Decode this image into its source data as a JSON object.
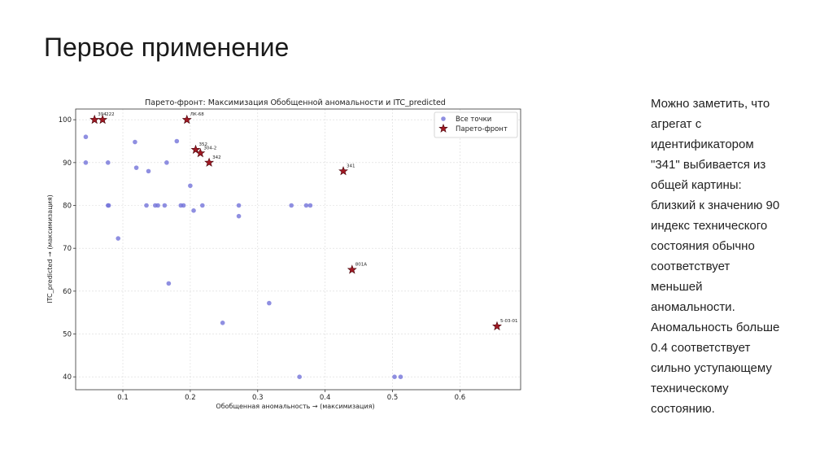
{
  "slide": {
    "title": "Первое применение",
    "note": "Можно заметить, что\nагрегат с\nидентификатором\n\"341\" выбивается из\nобщей картины:\nблизкий к значению 90\nиндекс технического\nсостояния обычно\nсоответствует\nменьшей\nаномальности.\nАномальность больше\n0.4 соответствует\nсильно уступающему\nтехническому\nсостоянию."
  },
  "chart_data": {
    "type": "scatter",
    "title": "Парето-фронт: Максимизация Обобщенной аномальности и ITC_predicted",
    "xlabel": "Обобщенная аномальность → (максимизация)",
    "ylabel": "ITC_predicted → (максимизация)",
    "xlim": [
      0.03,
      0.69
    ],
    "ylim": [
      37,
      102.5
    ],
    "xticks": [
      0.1,
      0.2,
      0.3,
      0.4,
      0.5,
      0.6
    ],
    "yticks": [
      40,
      50,
      60,
      70,
      80,
      90,
      100
    ],
    "grid": true,
    "legend_position": "top-right",
    "colors": {
      "points": "#7373d9",
      "pareto": "#a01822",
      "pareto_edge": "#4a0a10"
    },
    "series": [
      {
        "name": "Все точки",
        "marker": "circle",
        "points": [
          [
            0.045,
            96
          ],
          [
            0.045,
            90
          ],
          [
            0.078,
            90
          ],
          [
            0.078,
            80
          ],
          [
            0.079,
            80
          ],
          [
            0.093,
            72.3
          ],
          [
            0.118,
            94.8
          ],
          [
            0.12,
            88.8
          ],
          [
            0.135,
            80
          ],
          [
            0.138,
            88
          ],
          [
            0.148,
            80
          ],
          [
            0.152,
            80
          ],
          [
            0.162,
            80
          ],
          [
            0.165,
            90
          ],
          [
            0.168,
            61.8
          ],
          [
            0.18,
            95
          ],
          [
            0.186,
            80
          ],
          [
            0.19,
            80
          ],
          [
            0.2,
            84.6
          ],
          [
            0.205,
            78.8
          ],
          [
            0.218,
            80
          ],
          [
            0.248,
            52.6
          ],
          [
            0.272,
            80
          ],
          [
            0.272,
            77.5
          ],
          [
            0.317,
            57.2
          ],
          [
            0.35,
            80
          ],
          [
            0.362,
            40
          ],
          [
            0.372,
            80
          ],
          [
            0.378,
            80
          ],
          [
            0.503,
            40
          ],
          [
            0.512,
            40
          ]
        ]
      },
      {
        "name": "Парето-фронт",
        "marker": "star",
        "points": [
          [
            0.058,
            100,
            "394"
          ],
          [
            0.07,
            100,
            "222"
          ],
          [
            0.195,
            100,
            "ЛК-68"
          ],
          [
            0.208,
            93,
            "352"
          ],
          [
            0.215,
            92.2,
            "304-2"
          ],
          [
            0.228,
            90,
            "342"
          ],
          [
            0.427,
            88,
            "341"
          ],
          [
            0.44,
            65,
            "801A"
          ],
          [
            0.655,
            51.8,
            "5-03-01"
          ]
        ]
      }
    ]
  }
}
